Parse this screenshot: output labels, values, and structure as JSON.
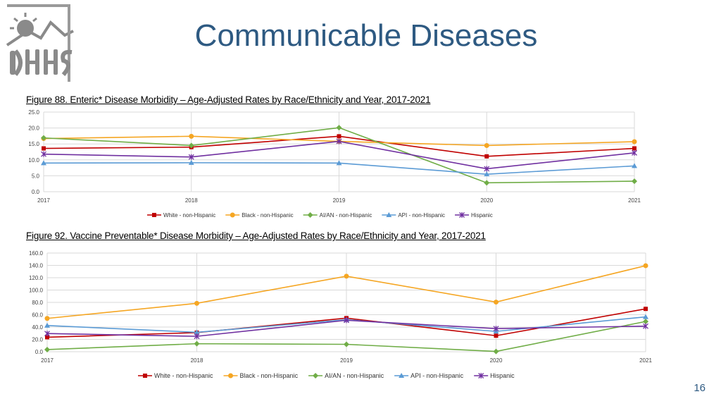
{
  "page": {
    "title": "Communicable Diseases",
    "number": "16"
  },
  "colors": {
    "white": "#c00000",
    "black": "#f5a623",
    "aian": "#70ad47",
    "api": "#5b9bd5",
    "hispanic": "#7030a0",
    "title": "#2e5a82"
  },
  "chart_data": [
    {
      "type": "line",
      "title": "Figure 88. Enteric* Disease Morbidity – Age-Adjusted Rates by Race/Ethnicity and Year, 2017-2021",
      "categories": [
        "2017",
        "2018",
        "2019",
        "2020",
        "2021"
      ],
      "ylim": [
        0,
        25
      ],
      "ytick_step": 5,
      "ytick_decimals": 1,
      "legend_position": "bottom",
      "series": [
        {
          "name": "White - non-Hispanic",
          "values": [
            13.6,
            14.0,
            17.4,
            11.1,
            13.6
          ]
        },
        {
          "name": "Black - non-Hispanic",
          "values": [
            16.7,
            17.4,
            15.8,
            14.5,
            15.7
          ]
        },
        {
          "name": "AI/AN - non-Hispanic",
          "values": [
            16.9,
            14.5,
            20.1,
            2.8,
            3.3
          ]
        },
        {
          "name": "API - non-Hispanic",
          "values": [
            9.0,
            9.1,
            9.0,
            5.5,
            8.1
          ]
        },
        {
          "name": "Hispanic",
          "values": [
            11.8,
            10.9,
            15.8,
            7.2,
            12.2
          ]
        }
      ]
    },
    {
      "type": "line",
      "title": "Figure 92. Vaccine Preventable* Disease Morbidity – Age-Adjusted Rates by Race/Ethnicity and Year, 2017-2021",
      "categories": [
        "2017",
        "2018",
        "2019",
        "2020",
        "2021"
      ],
      "ylim": [
        0,
        160
      ],
      "ytick_step": 20,
      "ytick_decimals": 1,
      "legend_position": "bottom",
      "series": [
        {
          "name": "White - non-Hispanic",
          "values": [
            23.5,
            31.0,
            54.5,
            26.0,
            69.5
          ]
        },
        {
          "name": "Black - non-Hispanic",
          "values": [
            54.0,
            78.5,
            122.5,
            80.5,
            139.5
          ]
        },
        {
          "name": "AI/AN - non-Hispanic",
          "values": [
            3.5,
            13.0,
            12.0,
            0.5,
            49.0
          ]
        },
        {
          "name": "API - non-Hispanic",
          "values": [
            42.5,
            31.5,
            52.0,
            33.0,
            56.5
          ]
        },
        {
          "name": "Hispanic",
          "values": [
            29.5,
            25.0,
            51.0,
            37.5,
            41.5
          ]
        }
      ]
    }
  ]
}
